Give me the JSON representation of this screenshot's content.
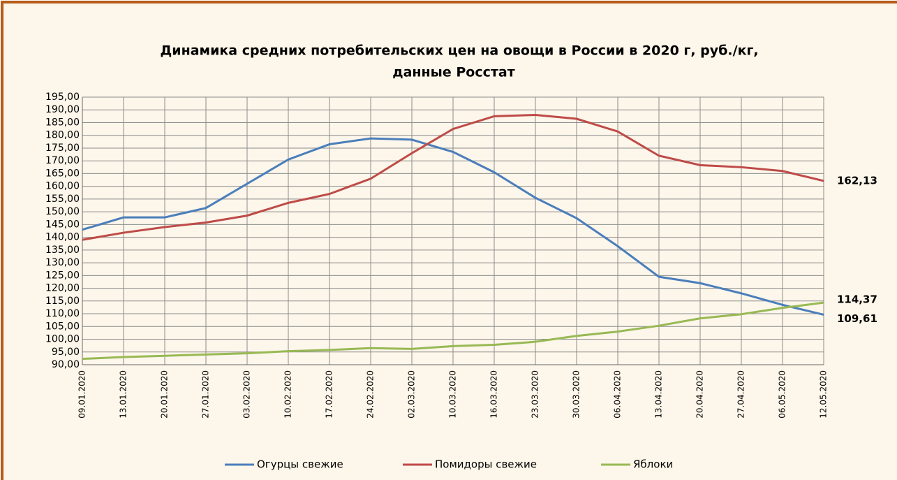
{
  "chart_data": {
    "type": "line",
    "title": "Динамика  средних потребительских цен на овощи в России в 2020 г, руб./кг,",
    "subtitle": "данные Росстат",
    "categories": [
      "09.01.2020",
      "13.01.2020",
      "20.01.2020",
      "27.01.2020",
      "03.02.2020",
      "10.02.2020",
      "17.02.2020",
      "24.02.2020",
      "02.03.2020",
      "10.03.2020",
      "16.03.2020",
      "23.03.2020",
      "30.03.2020",
      "06.04.2020",
      "13.04.2020",
      "20.04.2020",
      "27.04.2020",
      "06.05.2020",
      "12.05.2020"
    ],
    "series": [
      {
        "name": "Огурцы  свежие",
        "color": "#4a7ebb",
        "values": [
          143,
          147.8,
          147.8,
          151.5,
          161,
          170.5,
          176.5,
          178.8,
          178.3,
          173.5,
          165.5,
          155.5,
          147.5,
          136.5,
          124.5,
          122,
          118,
          113.5,
          109.61
        ],
        "value_labels": [
          null,
          null,
          null,
          null,
          null,
          null,
          null,
          null,
          null,
          null,
          null,
          null,
          null,
          null,
          null,
          null,
          null,
          null,
          "109,61"
        ]
      },
      {
        "name": "Помидоры  свежие",
        "color": "#be4b48",
        "values": [
          139,
          141.8,
          144,
          145.8,
          148.5,
          153.5,
          157,
          163,
          173,
          182.5,
          187.5,
          188,
          186.5,
          181.5,
          172,
          168.3,
          167.5,
          166,
          162.13
        ],
        "value_labels": [
          null,
          null,
          null,
          null,
          null,
          null,
          null,
          null,
          null,
          null,
          null,
          null,
          null,
          null,
          null,
          null,
          null,
          null,
          "162,13"
        ]
      },
      {
        "name": "Яблоки",
        "color": "#98b954",
        "values": [
          92.3,
          93,
          93.5,
          94,
          94.5,
          95.3,
          95.8,
          96.5,
          96.2,
          97.3,
          97.8,
          99,
          101.3,
          103,
          105.3,
          108.2,
          109.8,
          112.3,
          114.37
        ],
        "value_labels": [
          null,
          null,
          null,
          null,
          null,
          null,
          null,
          null,
          null,
          null,
          null,
          null,
          null,
          null,
          null,
          null,
          null,
          null,
          "114,37"
        ]
      }
    ],
    "ylim": [
      90,
      195
    ],
    "yticks": [
      {
        "value": 90,
        "label": "90,00"
      },
      {
        "value": 95,
        "label": "95,00"
      },
      {
        "value": 100,
        "label": "100,00"
      },
      {
        "value": 105,
        "label": "105,00"
      },
      {
        "value": 110,
        "label": "110,00"
      },
      {
        "value": 115,
        "label": "115,00"
      },
      {
        "value": 120,
        "label": "120,00"
      },
      {
        "value": 125,
        "label": "125,00"
      },
      {
        "value": 130,
        "label": "130,00"
      },
      {
        "value": 135,
        "label": "135,00"
      },
      {
        "value": 140,
        "label": "140,00"
      },
      {
        "value": 145,
        "label": "145,00"
      },
      {
        "value": 150,
        "label": "150,00"
      },
      {
        "value": 155,
        "label": "155,00"
      },
      {
        "value": 160,
        "label": "160,00"
      },
      {
        "value": 165,
        "label": "165,00"
      },
      {
        "value": 170,
        "label": "170,00"
      },
      {
        "value": 175,
        "label": "175,00"
      },
      {
        "value": 180,
        "label": "180,00"
      },
      {
        "value": 185,
        "label": "185,00"
      },
      {
        "value": 190,
        "label": "190,00"
      },
      {
        "value": 195,
        "label": "195,00"
      }
    ],
    "grid": true,
    "legend": "bottom"
  }
}
